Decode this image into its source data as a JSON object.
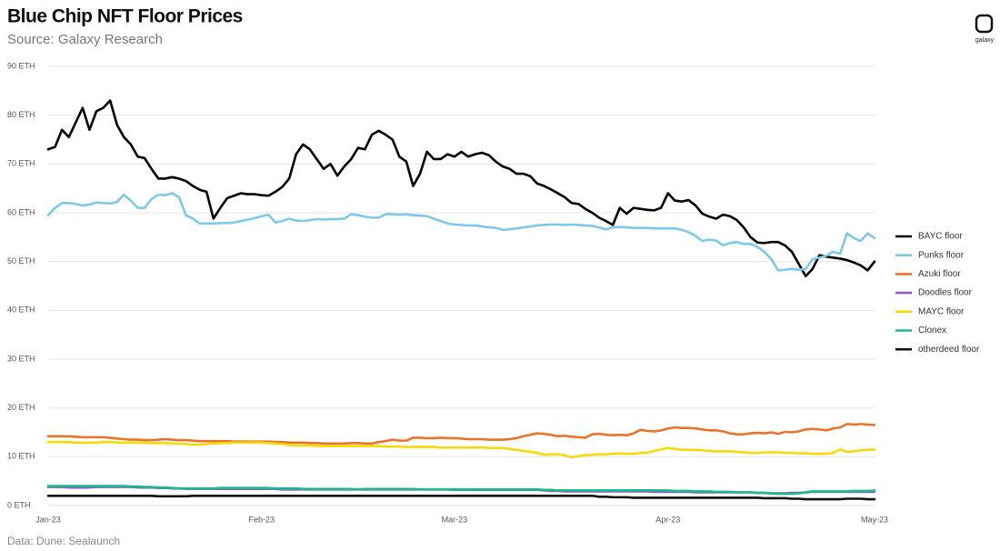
{
  "chart_data": {
    "type": "line",
    "title": "Blue Chip NFT Floor Prices",
    "subtitle": "Source: Galaxy Research",
    "footer": "Data: Dune: Sealaunch",
    "logo": "galaxy",
    "grid": true,
    "legend": "right",
    "ylim": [
      0,
      90
    ],
    "yticks": [
      {
        "value": 0,
        "label": "0 ETH"
      },
      {
        "value": 10,
        "label": "10 ETH"
      },
      {
        "value": 20,
        "label": "20 ETH"
      },
      {
        "value": 30,
        "label": "30 ETH"
      },
      {
        "value": 40,
        "label": "40 ETH"
      },
      {
        "value": 50,
        "label": "50 ETH"
      },
      {
        "value": 60,
        "label": "60 ETH"
      },
      {
        "value": 70,
        "label": "70 ETH"
      },
      {
        "value": 80,
        "label": "80 ETH"
      },
      {
        "value": 90,
        "label": "90 ETH"
      }
    ],
    "categories": [
      "Jan-23",
      null,
      null,
      null,
      null,
      null,
      null,
      null,
      null,
      null,
      null,
      null,
      null,
      null,
      null,
      null,
      null,
      null,
      null,
      null,
      null,
      null,
      null,
      null,
      null,
      null,
      null,
      null,
      null,
      null,
      null,
      "Feb-23",
      null,
      null,
      null,
      null,
      null,
      null,
      null,
      null,
      null,
      null,
      null,
      null,
      null,
      null,
      null,
      null,
      null,
      null,
      null,
      null,
      null,
      null,
      null,
      null,
      null,
      null,
      null,
      "Mar-23",
      null,
      null,
      null,
      null,
      null,
      null,
      null,
      null,
      null,
      null,
      null,
      null,
      null,
      null,
      null,
      null,
      null,
      null,
      null,
      null,
      null,
      null,
      null,
      null,
      null,
      null,
      null,
      null,
      null,
      null,
      "Apr-23",
      null,
      null,
      null,
      null,
      null,
      null,
      null,
      null,
      null,
      null,
      null,
      null,
      null,
      null,
      null,
      null,
      null,
      null,
      null,
      null,
      null,
      null,
      null,
      null,
      null,
      null,
      null,
      null,
      null,
      "May-23"
    ],
    "series": [
      {
        "name": "BAYC floor",
        "color": "#000000",
        "values": [
          73,
          73.5,
          77,
          75.5,
          78.5,
          81.5,
          77,
          80.8,
          81.5,
          83,
          78,
          75.5,
          74,
          71.5,
          71.2,
          69,
          67,
          67,
          67.3,
          67,
          66.5,
          65.5,
          64.7,
          64.3,
          58.8,
          61,
          63,
          63.5,
          64,
          63.8,
          63.8,
          63.6,
          63.5,
          64.3,
          65.3,
          67,
          72,
          74,
          73,
          71,
          69,
          70,
          67.6,
          69.5,
          71,
          73.3,
          73,
          76,
          76.8,
          76,
          75,
          71.5,
          70.5,
          65.5,
          68,
          72.5,
          71,
          71,
          72,
          71.5,
          72.5,
          71.5,
          72,
          72.3,
          71.8,
          70.5,
          69.5,
          69,
          68,
          68,
          67.5,
          66,
          65.5,
          64.8,
          64,
          63.2,
          62,
          61.8,
          60.8,
          60,
          59,
          58.3,
          57.5,
          61,
          59.8,
          61,
          60.8,
          60.6,
          60.5,
          61,
          64,
          62.5,
          62.3,
          62.6,
          61.5,
          59.8,
          59.2,
          58.8,
          59.6,
          59.3,
          58.5,
          57,
          55,
          53.9,
          53.8,
          54,
          54,
          53.3,
          52,
          49.5,
          47,
          48.5,
          51.3,
          51,
          50.8,
          50.6,
          50.3,
          49.8,
          49.2,
          48.2,
          50
        ]
      },
      {
        "name": "Punks floor",
        "color": "#7ec8ea",
        "values": [
          59.5,
          61,
          62,
          62,
          61.8,
          61.5,
          61.7,
          62.1,
          62,
          61.9,
          62.2,
          63.7,
          62.5,
          61,
          61,
          62.8,
          63.7,
          63.6,
          64,
          63.2,
          59.5,
          58.8,
          57.8,
          57.8,
          57.8,
          57.9,
          57.9,
          58,
          58.3,
          58.6,
          58.9,
          59.3,
          59.6,
          58,
          58.3,
          58.8,
          58.4,
          58.3,
          58.5,
          58.7,
          58.6,
          58.7,
          58.7,
          58.8,
          59.7,
          59.5,
          59.2,
          59,
          59,
          59.7,
          59.7,
          59.6,
          59.7,
          59.5,
          59.4,
          59.3,
          58.8,
          58.3,
          57.8,
          57.6,
          57.5,
          57.4,
          57.4,
          57.2,
          57,
          56.9,
          56.5,
          56.6,
          56.8,
          57,
          57.2,
          57.4,
          57.5,
          57.6,
          57.6,
          57.5,
          57.6,
          57.5,
          57.4,
          57.3,
          57,
          56.6,
          57,
          57.1,
          57,
          56.9,
          56.9,
          56.9,
          56.8,
          56.8,
          56.8,
          56.8,
          56.5,
          56,
          55.3,
          54.2,
          54.5,
          54.3,
          53.3,
          53.8,
          54,
          53.6,
          53.6,
          53,
          52,
          50.5,
          48.2,
          48.3,
          48.5,
          48.3,
          48.5,
          50.5,
          50.8,
          51.2,
          52,
          51.6,
          55.8,
          54.8,
          54.2,
          55.8,
          54.8
        ]
      },
      {
        "name": "Azuki floor",
        "color": "#e8742a",
        "values": [
          14.2,
          14.2,
          14.2,
          14.2,
          14.1,
          14,
          14,
          14,
          14,
          13.9,
          13.7,
          13.6,
          13.5,
          13.5,
          13.4,
          13.4,
          13.5,
          13.6,
          13.5,
          13.4,
          13.4,
          13.3,
          13.2,
          13.2,
          13.2,
          13.2,
          13.2,
          13.1,
          13.1,
          13.1,
          13.1,
          13.1,
          13.1,
          13,
          13,
          12.9,
          12.9,
          12.9,
          12.8,
          12.8,
          12.7,
          12.7,
          12.7,
          12.7,
          12.8,
          12.8,
          12.7,
          12.7,
          13,
          13.2,
          13.5,
          13.3,
          13.3,
          13.9,
          13.9,
          13.8,
          13.8,
          13.9,
          13.8,
          13.8,
          13.7,
          13.6,
          13.6,
          13.6,
          13.5,
          13.5,
          13.5,
          13.6,
          13.8,
          14.2,
          14.5,
          14.8,
          14.7,
          14.5,
          14.2,
          14.3,
          14.1,
          14,
          13.9,
          14.6,
          14.7,
          14.5,
          14.4,
          14.5,
          14.4,
          14.8,
          15.5,
          15.3,
          15.2,
          15.4,
          15.8,
          16,
          15.9,
          15.9,
          15.8,
          15.6,
          15.4,
          15.4,
          15.2,
          14.8,
          14.6,
          14.6,
          14.8,
          14.9,
          14.8,
          15,
          14.7,
          15.1,
          15,
          15.2,
          15.6,
          15.7,
          15.6,
          15.4,
          15.8,
          16,
          16.7,
          16.6,
          16.7,
          16.6,
          16.5
        ]
      },
      {
        "name": "Doodles floor",
        "color": "#8b5cc9",
        "values": [
          3.8,
          3.8,
          3.8,
          3.7,
          3.7,
          3.7,
          3.7,
          3.8,
          3.8,
          3.8,
          3.8,
          3.8,
          3.8,
          3.7,
          3.7,
          3.7,
          3.6,
          3.6,
          3.5,
          3.5,
          3.4,
          3.4,
          3.4,
          3.4,
          3.4,
          3.4,
          3.4,
          3.4,
          3.4,
          3.4,
          3.4,
          3.4,
          3.4,
          3.4,
          3.3,
          3.3,
          3.3,
          3.3,
          3.3,
          3.3,
          3.3,
          3.3,
          3.3,
          3.3,
          3.3,
          3.3,
          3.3,
          3.3,
          3.3,
          3.3,
          3.3,
          3.3,
          3.3,
          3.3,
          3.3,
          3.3,
          3.3,
          3.3,
          3.3,
          3.2,
          3.2,
          3.2,
          3.2,
          3.2,
          3.2,
          3.2,
          3.2,
          3.2,
          3.2,
          3.2,
          3.2,
          3.2,
          3.1,
          3,
          3,
          2.9,
          2.9,
          2.9,
          2.9,
          2.9,
          2.9,
          2.9,
          2.9,
          2.9,
          2.9,
          2.9,
          2.9,
          2.9,
          2.8,
          2.8,
          2.8,
          2.8,
          2.8,
          2.8,
          2.7,
          2.7,
          2.7,
          2.7,
          2.7,
          2.7,
          2.7,
          2.7,
          2.7,
          2.6,
          2.6,
          2.5,
          2.5,
          2.5,
          2.6,
          2.6,
          2.7,
          2.8,
          2.8,
          2.8,
          2.8,
          2.8,
          2.8,
          2.8,
          2.8,
          2.8,
          2.8
        ]
      },
      {
        "name": "MAYC floor",
        "color": "#f5d90a",
        "values": [
          13,
          13,
          13,
          13,
          12.9,
          12.9,
          12.9,
          12.9,
          13,
          13,
          12.9,
          12.9,
          12.9,
          12.9,
          12.9,
          12.8,
          12.8,
          12.8,
          12.7,
          12.7,
          12.6,
          12.5,
          12.5,
          12.6,
          12.7,
          12.8,
          12.8,
          12.9,
          12.9,
          12.9,
          12.9,
          12.9,
          12.8,
          12.7,
          12.6,
          12.4,
          12.3,
          12.3,
          12.3,
          12.2,
          12.2,
          12.2,
          12.2,
          12.2,
          12.2,
          12.2,
          12.2,
          12.2,
          12.2,
          12.1,
          12.1,
          12.1,
          12,
          12,
          12,
          12,
          12,
          11.9,
          11.9,
          11.9,
          11.9,
          11.9,
          11.9,
          11.9,
          11.8,
          11.8,
          11.8,
          11.6,
          11.4,
          11.2,
          11,
          10.8,
          10.4,
          10.5,
          10.5,
          10.3,
          9.9,
          10.1,
          10.3,
          10.4,
          10.5,
          10.5,
          10.6,
          10.7,
          10.6,
          10.6,
          10.8,
          10.8,
          11.2,
          11.5,
          11.8,
          11.6,
          11.4,
          11.4,
          11.4,
          11.3,
          11.2,
          11.1,
          11.1,
          11.1,
          11,
          10.9,
          10.8,
          10.8,
          10.9,
          10.9,
          10.9,
          10.8,
          10.8,
          10.7,
          10.7,
          10.6,
          10.6,
          10.6,
          10.8,
          11.5,
          11,
          11.1,
          11.3,
          11.4,
          11.5
        ]
      },
      {
        "name": "Clonex",
        "color": "#1fb88a",
        "values": [
          4,
          4,
          4,
          4,
          4,
          4,
          4,
          4,
          4,
          4,
          4,
          4,
          3.9,
          3.9,
          3.8,
          3.8,
          3.7,
          3.7,
          3.6,
          3.5,
          3.5,
          3.5,
          3.5,
          3.5,
          3.5,
          3.6,
          3.6,
          3.6,
          3.6,
          3.6,
          3.6,
          3.6,
          3.6,
          3.5,
          3.5,
          3.5,
          3.5,
          3.4,
          3.4,
          3.4,
          3.4,
          3.4,
          3.4,
          3.4,
          3.4,
          3.3,
          3.4,
          3.4,
          3.4,
          3.4,
          3.4,
          3.4,
          3.4,
          3.4,
          3.3,
          3.3,
          3.3,
          3.3,
          3.3,
          3.3,
          3.3,
          3.3,
          3.3,
          3.3,
          3.3,
          3.3,
          3.3,
          3.3,
          3.3,
          3.3,
          3.3,
          3.3,
          3.2,
          3.2,
          3.1,
          3.1,
          3.1,
          3.1,
          3.1,
          3.1,
          3.1,
          3.1,
          3.1,
          3.1,
          3.1,
          3.1,
          3.1,
          3.1,
          3.1,
          3.1,
          3.1,
          3,
          3,
          3,
          2.9,
          2.9,
          2.9,
          2.8,
          2.8,
          2.8,
          2.7,
          2.7,
          2.7,
          2.6,
          2.6,
          2.5,
          2.4,
          2.4,
          2.4,
          2.5,
          2.7,
          2.9,
          2.9,
          2.9,
          2.9,
          2.9,
          2.9,
          3,
          3,
          3,
          3.1
        ]
      },
      {
        "name": "otherdeed floor",
        "color": "#111111",
        "values": [
          2,
          2,
          2,
          2,
          2,
          2,
          2,
          2,
          2,
          2,
          2,
          2,
          2,
          2,
          2,
          2,
          1.9,
          1.9,
          1.9,
          1.9,
          1.9,
          2,
          2,
          2,
          2,
          2,
          2,
          2,
          2,
          2,
          2,
          2,
          2,
          2,
          2,
          2,
          2,
          2,
          2,
          2,
          2,
          2,
          2,
          2,
          2,
          2,
          2,
          2,
          2,
          2,
          2,
          2,
          2,
          2,
          2,
          2,
          2,
          2,
          2,
          2,
          2,
          2,
          2,
          2,
          2,
          2,
          2,
          2,
          2,
          2,
          2,
          2,
          2,
          2,
          2,
          2,
          2,
          2,
          2,
          2,
          1.8,
          1.8,
          1.7,
          1.7,
          1.7,
          1.6,
          1.6,
          1.6,
          1.6,
          1.6,
          1.6,
          1.6,
          1.6,
          1.6,
          1.6,
          1.6,
          1.6,
          1.6,
          1.6,
          1.6,
          1.6,
          1.6,
          1.6,
          1.6,
          1.5,
          1.5,
          1.5,
          1.5,
          1.4,
          1.4,
          1.3,
          1.3,
          1.3,
          1.3,
          1.3,
          1.3,
          1.4,
          1.4,
          1.4,
          1.3,
          1.3
        ]
      }
    ]
  }
}
